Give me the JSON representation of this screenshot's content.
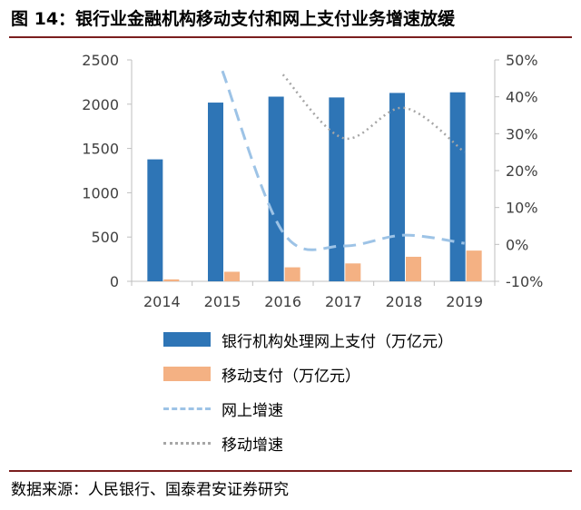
{
  "figure": {
    "title": "图 14：银行业金融机构移动支付和网上支付业务增速放缓",
    "source": "数据来源：人民银行、国泰君安证券研究"
  },
  "colors": {
    "bar_bank": "#2e75b6",
    "bar_mobile": "#f4b183",
    "line_online": "#9dc3e6",
    "line_mobile": "#a6a6a6",
    "rule": "#7a1e1e"
  },
  "legend": [
    {
      "name": "银行机构处理网上支付（万亿元）",
      "style": "bar-blue"
    },
    {
      "name": "移动支付（万亿元）",
      "style": "bar-orange"
    },
    {
      "name": "网上增速",
      "style": "dash"
    },
    {
      "name": "移动增速",
      "style": "dot"
    }
  ],
  "chart_data": {
    "type": "bar",
    "categories": [
      "2014",
      "2015",
      "2016",
      "2017",
      "2018",
      "2019"
    ],
    "series": [
      {
        "name": "银行机构处理网上支付（万亿元）",
        "type": "bar",
        "axis": "left",
        "values": [
          1377,
          2018,
          2085,
          2076,
          2127,
          2134
        ]
      },
      {
        "name": "移动支付（万亿元）",
        "type": "bar",
        "axis": "left",
        "values": [
          22,
          108,
          158,
          202,
          277,
          347
        ]
      },
      {
        "name": "网上增速",
        "type": "line",
        "axis": "right",
        "values": [
          null,
          47,
          3.3,
          -0.4,
          2.5,
          0.3
        ]
      },
      {
        "name": "移动增速",
        "type": "line",
        "axis": "right",
        "values": [
          null,
          null,
          46,
          28.8,
          37,
          25
        ]
      }
    ],
    "ylim_left": [
      0,
      2500
    ],
    "yticks_left": [
      "0",
      "500",
      "1000",
      "1500",
      "2000",
      "2500"
    ],
    "ylim_right": [
      -10,
      50
    ],
    "yticks_right": [
      "-10%",
      "0%",
      "10%",
      "20%",
      "30%",
      "40%",
      "50%"
    ],
    "legend_position": "bottom",
    "grid": false
  }
}
